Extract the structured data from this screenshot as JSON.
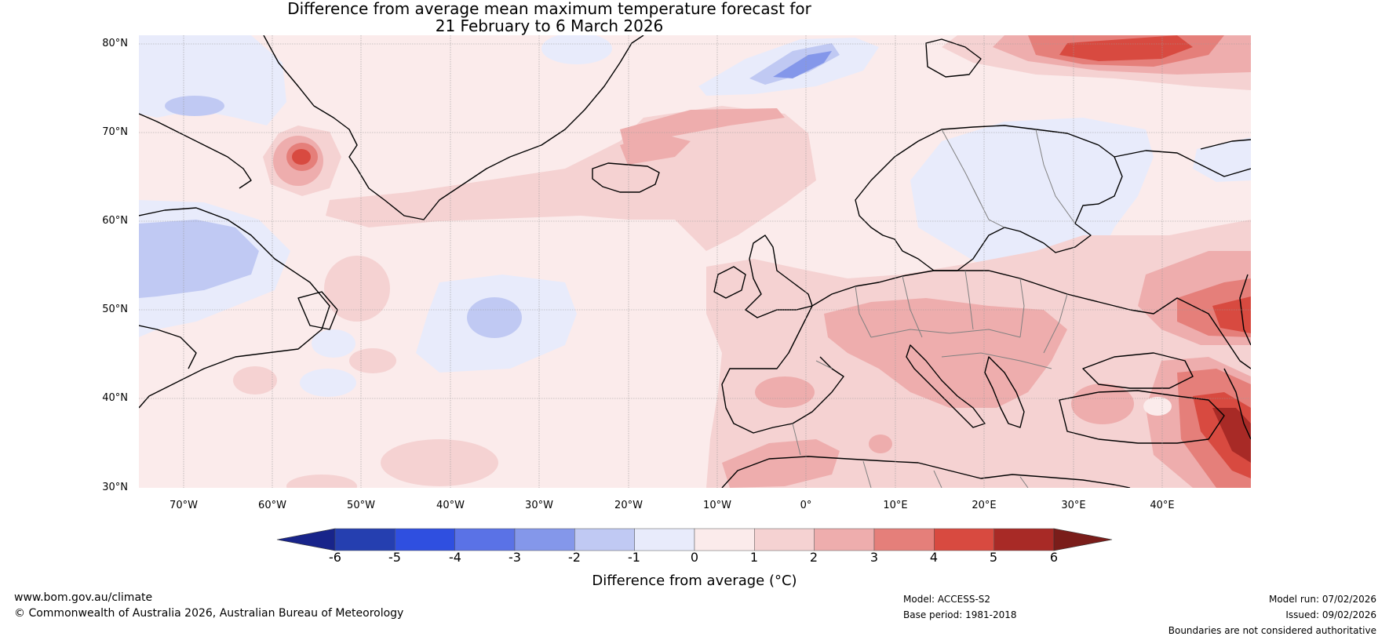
{
  "title": {
    "line1": "Difference from average mean maximum temperature forecast for",
    "line2": "21 February to 6 March 2026"
  },
  "map": {
    "lat_labels": [
      "80°N",
      "70°N",
      "60°N",
      "50°N",
      "40°N",
      "30°N"
    ],
    "lon_labels": [
      "70°W",
      "60°W",
      "50°W",
      "40°W",
      "30°W",
      "20°W",
      "10°W",
      "0°",
      "10°E",
      "20°E",
      "30°E",
      "40°E"
    ],
    "lat_range": [
      30,
      81
    ],
    "lon_range": [
      -75,
      50
    ]
  },
  "colorbar": {
    "ticks": [
      "-6",
      "-5",
      "-4",
      "-3",
      "-2",
      "-1",
      "0",
      "1",
      "2",
      "3",
      "4",
      "5",
      "6"
    ],
    "colors": [
      "#253fb0",
      "#2f4fe0",
      "#5a72e6",
      "#8497ea",
      "#c0c9f3",
      "#e8ebfb",
      "#fbebeb",
      "#f5d2d2",
      "#eeadad",
      "#e57f7a",
      "#d84a40",
      "#a82a26"
    ],
    "under_color": "#18248a",
    "over_color": "#7a1d1a",
    "label": "Difference from average (°C)"
  },
  "footer": {
    "website": "www.bom.gov.au/climate",
    "copyright": "© Commonwealth of Australia 2026, Australian Bureau of Meteorology",
    "model": "Model: ACCESS-S2",
    "base_period": "Base period: 1981-2018",
    "model_run": "Model run: 07/02/2026",
    "issued": "Issued: 09/02/2026",
    "disclaimer": "Boundaries are not considered authoritative"
  }
}
